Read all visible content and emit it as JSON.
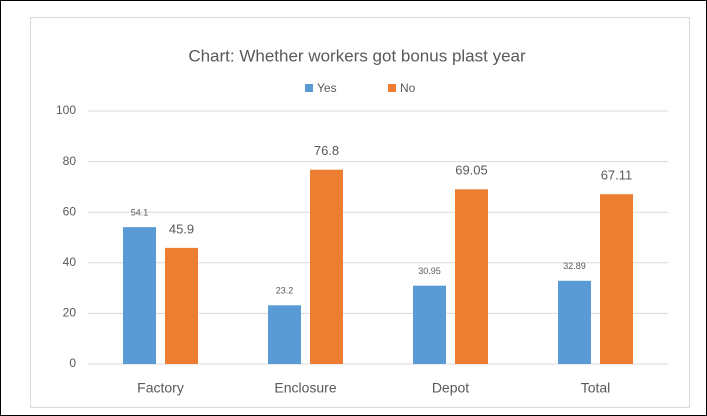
{
  "chart_data": {
    "type": "bar",
    "title": "Chart: Whether workers got bonus plast year",
    "categories": [
      "Factory",
      "Enclosure",
      "Depot",
      "Total"
    ],
    "series": [
      {
        "name": "Yes",
        "color": "#5b9bd5",
        "values": [
          54.1,
          23.2,
          30.95,
          32.89
        ]
      },
      {
        "name": "No",
        "color": "#ed7d31",
        "values": [
          45.9,
          76.8,
          69.05,
          67.11
        ]
      }
    ],
    "ylim": [
      0,
      100
    ],
    "yticks": [
      0,
      20,
      40,
      60,
      80,
      100
    ],
    "grid": true,
    "legend": "top"
  }
}
